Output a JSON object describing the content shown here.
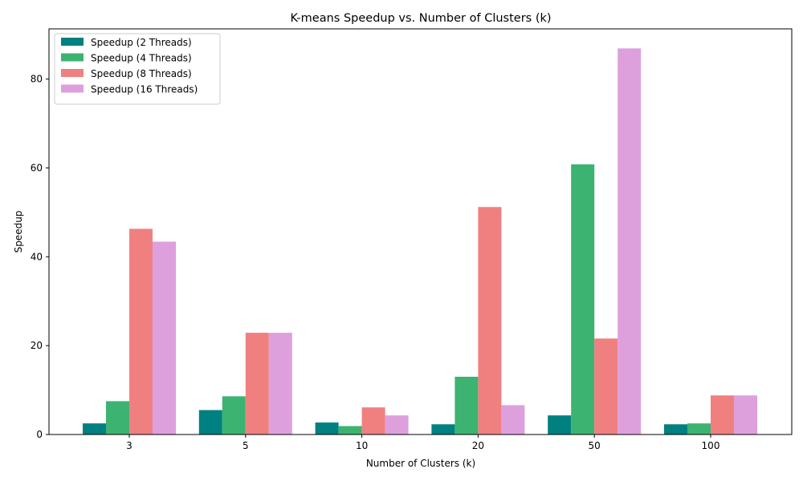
{
  "chart_data": {
    "type": "bar",
    "title": "K-means Speedup vs. Number of Clusters (k)",
    "xlabel": "Number of Clusters (k)",
    "ylabel": "Speedup",
    "categories": [
      "3",
      "5",
      "10",
      "20",
      "50",
      "100"
    ],
    "ylim": [
      0,
      91.3
    ],
    "yticks": [
      0,
      20,
      40,
      60,
      80
    ],
    "grid": false,
    "legend_position": "top-left",
    "series": [
      {
        "name": "Speedup (2 Threads)",
        "color": "#008080",
        "values": [
          2.5,
          5.5,
          2.7,
          2.3,
          4.3,
          2.3
        ]
      },
      {
        "name": "Speedup (4 Threads)",
        "color": "#3cb371",
        "values": [
          7.5,
          8.6,
          1.9,
          13.0,
          60.8,
          2.5
        ]
      },
      {
        "name": "Speedup (8 Threads)",
        "color": "#f08080",
        "values": [
          46.3,
          22.9,
          6.1,
          51.2,
          21.6,
          8.8
        ]
      },
      {
        "name": "Speedup (16 Threads)",
        "color": "#dda0dd",
        "values": [
          43.4,
          22.9,
          4.3,
          6.6,
          86.9,
          8.8
        ]
      }
    ]
  }
}
